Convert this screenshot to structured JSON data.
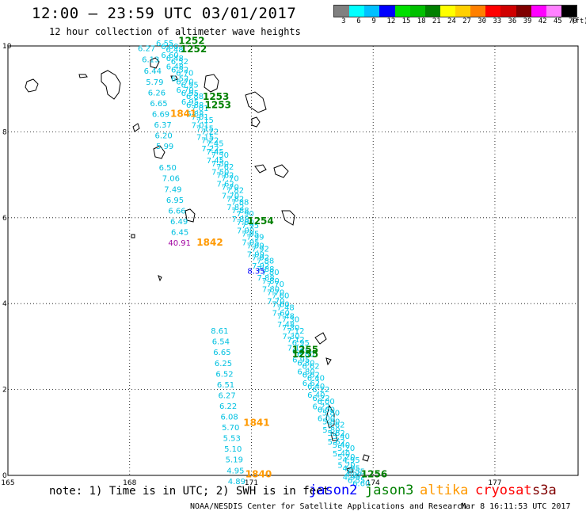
{
  "header": {
    "title": "12:00 — 23:59 UTC 03/01/2017",
    "subtitle": "12 hour collection of altimeter wave heights"
  },
  "legend": {
    "unit": "(ft)",
    "colors": [
      "#808080",
      "#00ffff",
      "#00c0ff",
      "#0000ff",
      "#00e000",
      "#00c000",
      "#008000",
      "#ffff00",
      "#ffd000",
      "#ff8000",
      "#ff0000",
      "#d00000",
      "#800000",
      "#ff00ff",
      "#ff80ff",
      "#000000"
    ],
    "labels": [
      "3",
      "6",
      "9",
      "12",
      "15",
      "18",
      "21",
      "24",
      "27",
      "30",
      "33",
      "36",
      "39",
      "42",
      "45",
      "70"
    ]
  },
  "axes": {
    "x_ticks": [
      {
        "value": 165,
        "label": "165"
      },
      {
        "value": 168,
        "label": "168"
      },
      {
        "value": 171,
        "label": "171"
      },
      {
        "value": 174,
        "label": "174"
      },
      {
        "value": 177,
        "label": "177"
      }
    ],
    "y_ticks": [
      {
        "value": 0,
        "label": "0"
      },
      {
        "value": 2,
        "label": "2"
      },
      {
        "value": 4,
        "label": "4"
      },
      {
        "value": 6,
        "label": "6"
      },
      {
        "value": 8,
        "label": "8"
      },
      {
        "value": 10,
        "label": "10"
      }
    ]
  },
  "tracks": [
    {
      "lon": 168.2,
      "lat": 9.88,
      "value": "6.27",
      "color": "#00c0e0"
    },
    {
      "lon": 168.3,
      "lat": 9.62,
      "value": "6.13",
      "color": "#00c0e0"
    },
    {
      "lon": 168.35,
      "lat": 9.35,
      "value": "6.44",
      "color": "#00c0e0"
    },
    {
      "lon": 168.4,
      "lat": 9.1,
      "value": "5.79",
      "color": "#00c0e0"
    },
    {
      "lon": 168.45,
      "lat": 8.85,
      "value": "6.26",
      "color": "#00c0e0"
    },
    {
      "lon": 168.5,
      "lat": 8.6,
      "value": "6.65",
      "color": "#00c0e0"
    },
    {
      "lon": 168.55,
      "lat": 8.35,
      "value": "6.69",
      "color": "#00c0e0"
    },
    {
      "lon": 168.6,
      "lat": 8.1,
      "value": "6.37",
      "color": "#00c0e0"
    },
    {
      "lon": 168.62,
      "lat": 7.85,
      "value": "6.20",
      "color": "#00c0e0"
    },
    {
      "lon": 168.65,
      "lat": 7.6,
      "value": "5.99",
      "color": "#00c0e0"
    },
    {
      "lon": 168.72,
      "lat": 7.1,
      "value": "6.50",
      "color": "#00c0e0"
    },
    {
      "lon": 168.8,
      "lat": 6.85,
      "value": "7.06",
      "color": "#00c0e0"
    },
    {
      "lon": 168.85,
      "lat": 6.6,
      "value": "7.49",
      "color": "#00c0e0"
    },
    {
      "lon": 168.9,
      "lat": 6.35,
      "value": "6.95",
      "color": "#00c0e0"
    },
    {
      "lon": 168.95,
      "lat": 6.1,
      "value": "6.66",
      "color": "#00c0e0"
    },
    {
      "lon": 169.0,
      "lat": 5.85,
      "value": "6.49",
      "color": "#00c0e0"
    },
    {
      "lon": 169.02,
      "lat": 5.6,
      "value": "6.45",
      "color": "#00c0e0"
    },
    {
      "lon": 168.95,
      "lat": 5.35,
      "value": "40.91",
      "color": "#a000a0"
    },
    {
      "lon": 170.0,
      "lat": 3.3,
      "value": "8.61",
      "color": "#00c0e0"
    },
    {
      "lon": 170.03,
      "lat": 3.05,
      "value": "6.54",
      "color": "#00c0e0"
    },
    {
      "lon": 170.06,
      "lat": 2.8,
      "value": "6.65",
      "color": "#00c0e0"
    },
    {
      "lon": 170.09,
      "lat": 2.55,
      "value": "6.25",
      "color": "#00c0e0"
    },
    {
      "lon": 170.12,
      "lat": 2.3,
      "value": "6.52",
      "color": "#00c0e0"
    },
    {
      "lon": 170.15,
      "lat": 2.05,
      "value": "6.51",
      "color": "#00c0e0"
    },
    {
      "lon": 170.18,
      "lat": 1.8,
      "value": "6.27",
      "color": "#00c0e0"
    },
    {
      "lon": 170.21,
      "lat": 1.55,
      "value": "6.22",
      "color": "#00c0e0"
    },
    {
      "lon": 170.24,
      "lat": 1.3,
      "value": "6.08",
      "color": "#00c0e0"
    },
    {
      "lon": 170.27,
      "lat": 1.05,
      "value": "5.70",
      "color": "#00c0e0"
    },
    {
      "lon": 170.3,
      "lat": 0.8,
      "value": "5.53",
      "color": "#00c0e0"
    },
    {
      "lon": 170.33,
      "lat": 0.55,
      "value": "5.10",
      "color": "#00c0e0"
    },
    {
      "lon": 170.36,
      "lat": 0.3,
      "value": "5.19",
      "color": "#00c0e0"
    },
    {
      "lon": 170.39,
      "lat": 0.05,
      "value": "4.95",
      "color": "#00c0e0"
    },
    {
      "lon": 170.42,
      "lat": -0.2,
      "value": "4.89",
      "color": "#00c0e0"
    },
    {
      "lon": 170.9,
      "lat": 4.7,
      "value": "8.35",
      "color": "#0000ff"
    },
    {
      "lon": 173.3,
      "lat": -0.05,
      "value": "4.27",
      "color": "#00c0e0"
    }
  ],
  "pass_labels": [
    {
      "lon": 169.2,
      "lat": 10.05,
      "text": "1252",
      "color": "#008000"
    },
    {
      "lon": 169.25,
      "lat": 9.85,
      "text": "1252",
      "color": "#008000"
    },
    {
      "lon": 169.8,
      "lat": 8.75,
      "text": "1253",
      "color": "#008000"
    },
    {
      "lon": 169.85,
      "lat": 8.55,
      "text": "1253",
      "color": "#008000"
    },
    {
      "lon": 169.0,
      "lat": 8.35,
      "text": "1841",
      "color": "#ff9900"
    },
    {
      "lon": 170.9,
      "lat": 5.85,
      "text": "1254",
      "color": "#008000"
    },
    {
      "lon": 169.65,
      "lat": 5.35,
      "text": "1842",
      "color": "#ff9900"
    },
    {
      "lon": 172.0,
      "lat": 2.85,
      "text": "1255",
      "color": "#008000"
    },
    {
      "lon": 172.0,
      "lat": 2.75,
      "text": "1255",
      "color": "#008000"
    },
    {
      "lon": 170.8,
      "lat": 1.15,
      "text": "1841",
      "color": "#ff9900"
    },
    {
      "lon": 170.85,
      "lat": -0.05,
      "text": "1840",
      "color": "#ff9900"
    },
    {
      "lon": 173.7,
      "lat": -0.05,
      "text": "1256",
      "color": "#008000"
    }
  ],
  "footer": {
    "note": "note: 1) Time is in UTC; 2) SWH is in feet",
    "satellites": [
      {
        "name": "jason2",
        "color": "#0000ff"
      },
      {
        "name": "jason3",
        "color": "#008000"
      },
      {
        "name": "altika",
        "color": "#ff9900"
      },
      {
        "name": "cryosat",
        "color": "#ff0000"
      },
      {
        "name": "s3a",
        "color": "#800000"
      }
    ],
    "credit": "NOAA/NESDIS Center for Satellite Applications and Research",
    "generated": "Mar  8 16:11:53 UTC 2017"
  }
}
